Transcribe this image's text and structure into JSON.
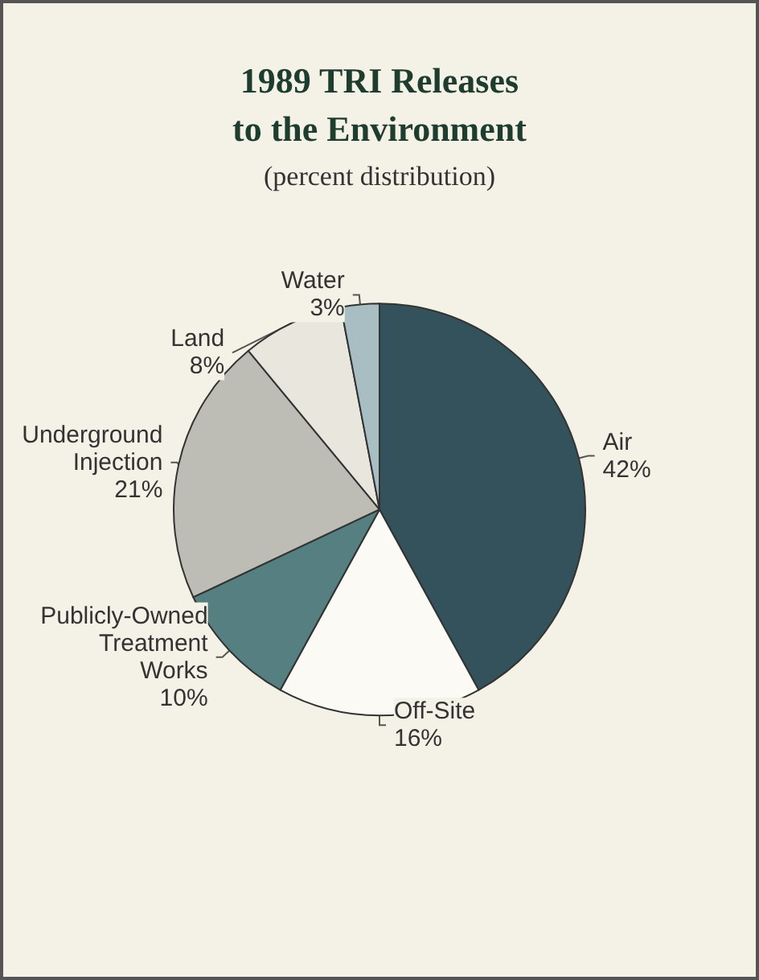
{
  "chart_data": {
    "type": "pie",
    "title": "1989 TRI Releases\nto the Environment",
    "subtitle": "(percent distribution)",
    "categories": [
      "Air",
      "Off-Site",
      "Publicly-Owned\nTreatment\nWorks",
      "Underground\nInjection",
      "Land",
      "Water"
    ],
    "values": [
      42,
      16,
      10,
      21,
      8,
      3
    ],
    "value_labels": [
      "42%",
      "16%",
      "10%",
      "21%",
      "8%",
      "3%"
    ],
    "colors": [
      "#34525c",
      "#fbfaf5",
      "#557f80",
      "#bdbdb5",
      "#e9e7dd",
      "#a8bec3"
    ],
    "legend": false
  }
}
